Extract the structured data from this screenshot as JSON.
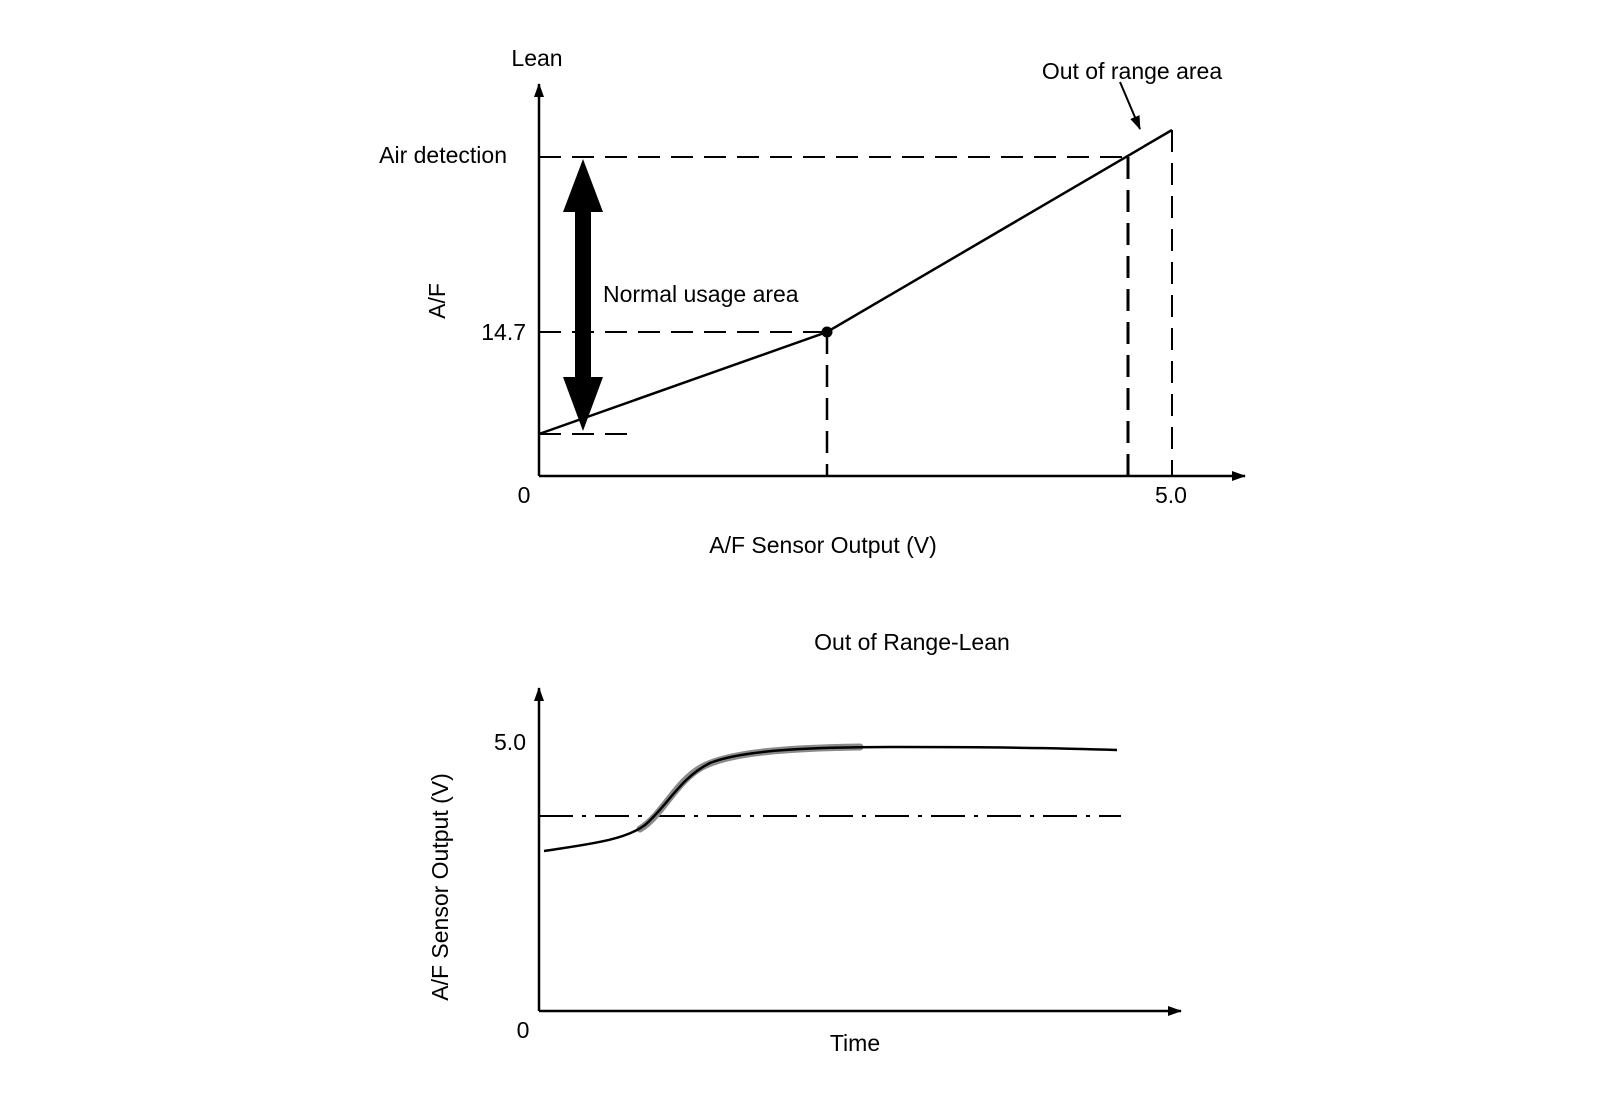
{
  "top_chart": {
    "y_arrow_label": "Lean",
    "y_axis_title": "A/F",
    "air_detection_label": "Air detection",
    "stoich_tick_label": "14.7",
    "origin_label": "0",
    "x_tick_label": "5.0",
    "x_axis_title": "A/F Sensor Output (V)",
    "normal_usage_label": "Normal usage area",
    "out_of_range_label": "Out of range area"
  },
  "bottom_chart": {
    "title": "Out of Range-Lean",
    "y_axis_title": "A/F Sensor Output (V)",
    "y_tick_label": "5.0",
    "origin_label": "0",
    "x_axis_title": "Time"
  },
  "colors": {
    "ink": "#000000",
    "background": "#ffffff",
    "curve_shading": "#8a8a8a"
  }
}
